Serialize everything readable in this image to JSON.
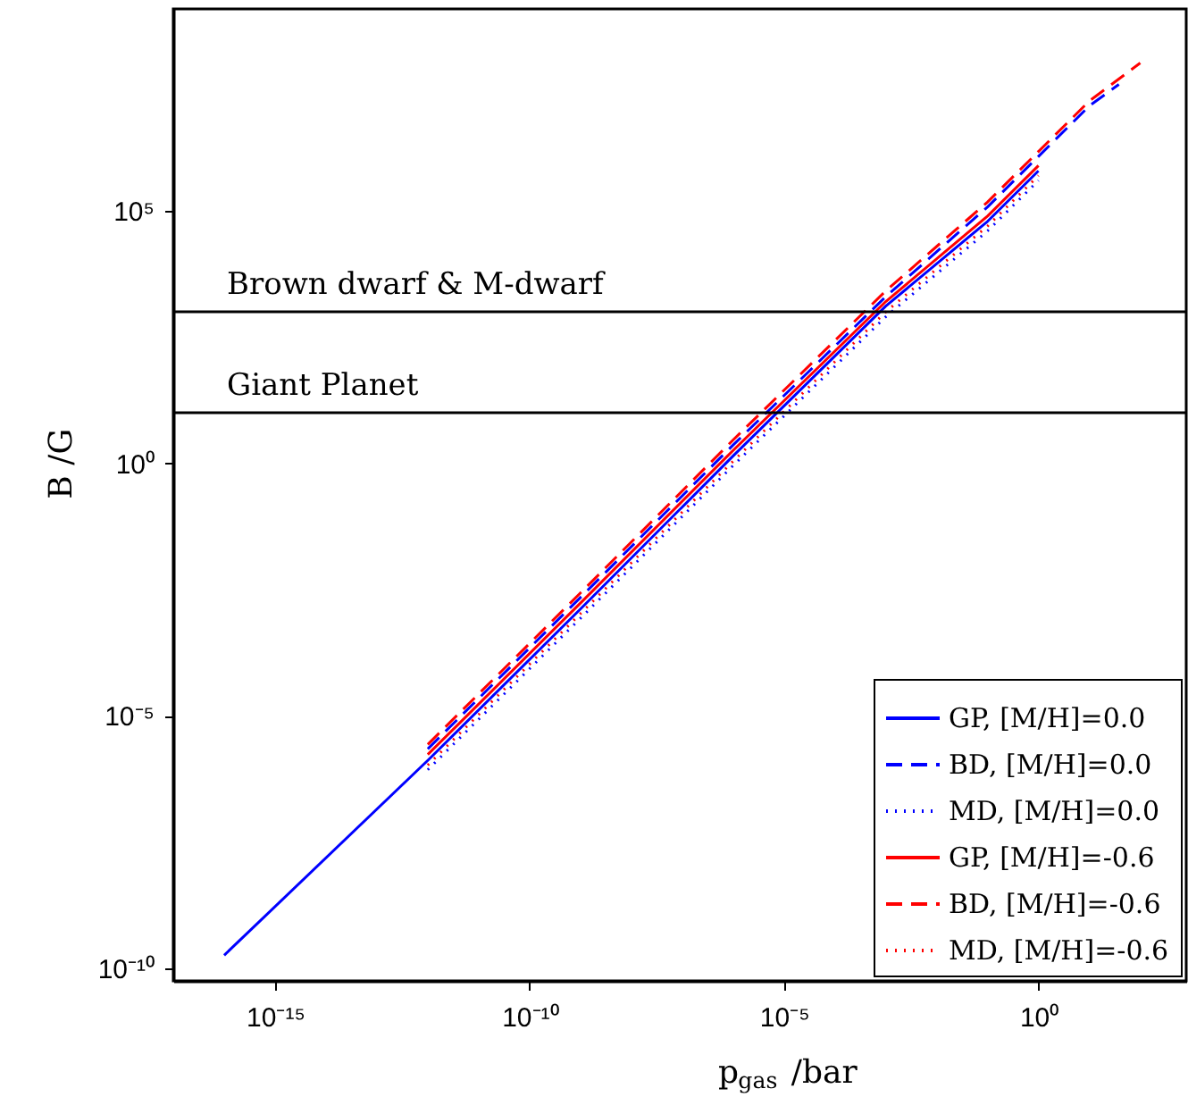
{
  "chart_data": {
    "type": "line",
    "xlabel": "p$_{gas}$ /bar",
    "ylabel": "B /G",
    "log": "xy",
    "grid": false,
    "legend": "bottom right",
    "xlim": [
      1e-17,
      800
    ],
    "ylim": [
      5.6e-11,
      1000000000.0
    ],
    "xticks": [
      {
        "value": 1e-15,
        "label": "10⁻¹⁵"
      },
      {
        "value": 1e-10,
        "label": "10⁻¹⁰"
      },
      {
        "value": 1e-05,
        "label": "10⁻⁵"
      },
      {
        "value": 1,
        "label": "10⁰"
      }
    ],
    "yticks": [
      {
        "value": 1e-10,
        "label": "10⁻¹⁰"
      },
      {
        "value": 1e-05,
        "label": "10⁻⁵"
      },
      {
        "value": 1,
        "label": "10⁰"
      },
      {
        "value": 100000,
        "label": "10⁵"
      }
    ],
    "ref_lines": [
      {
        "axis": "y",
        "value": 1000,
        "label": "Brown dwarf & M-dwarf",
        "color": "#000000"
      },
      {
        "axis": "y",
        "value": 10,
        "label": "Giant Planet",
        "color": "#000000"
      }
    ],
    "series": [
      {
        "name": "GP, [M/H]=0.0",
        "color": "#0000ff",
        "line_style": "solid",
        "x": [
          1e-16,
          1e-12,
          1e-09,
          1e-06,
          0.001,
          0.1,
          1
        ],
        "values": [
          1.8e-10,
          1.3e-06,
          0.0013,
          1.4,
          1300,
          62000,
          620000
        ]
      },
      {
        "name": "BD, [M/H]=0.0",
        "color": "#0000ff",
        "line_style": "dashed",
        "x": [
          1e-12,
          1e-09,
          1e-06,
          0.001,
          0.1,
          1,
          10,
          38
        ],
        "values": [
          2.2e-06,
          0.0022,
          2.3,
          2000,
          120000,
          1200000,
          12000000,
          32000000
        ]
      },
      {
        "name": "MD, [M/H]=0.0",
        "color": "#0000ff",
        "line_style": "dotted",
        "x": [
          1e-12,
          1e-09,
          1e-06,
          0.001,
          0.1,
          1
        ],
        "values": [
          8.5e-07,
          0.00085,
          0.9,
          800,
          40000,
          400000
        ]
      },
      {
        "name": "GP, [M/H]=-0.6",
        "color": "#ff0000",
        "line_style": "solid",
        "x": [
          1e-12,
          1e-09,
          1e-06,
          0.001,
          0.1,
          1
        ],
        "values": [
          1.7e-06,
          0.0017,
          1.8,
          1600,
          79000,
          790000
        ]
      },
      {
        "name": "BD, [M/H]=-0.6",
        "color": "#ff0000",
        "line_style": "dashed",
        "x": [
          1e-12,
          1e-09,
          1e-06,
          0.001,
          0.1,
          1,
          10,
          100
        ],
        "values": [
          2.7e-06,
          0.0027,
          2.9,
          2600,
          150000,
          1500000,
          15000000,
          85000000
        ]
      },
      {
        "name": "MD, [M/H]=-0.6",
        "color": "#ff0000",
        "line_style": "dotted",
        "x": [
          1e-12,
          1e-09,
          1e-06,
          0.001,
          0.1,
          1
        ],
        "values": [
          1.05e-06,
          0.00105,
          1.1,
          1000,
          50000,
          500000
        ]
      }
    ]
  }
}
